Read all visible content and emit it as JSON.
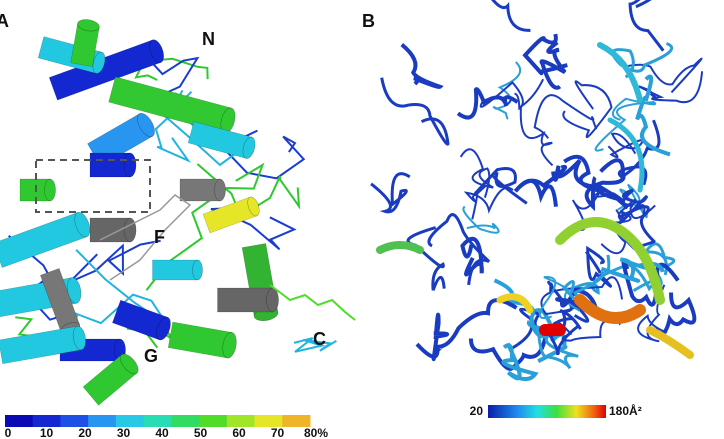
{
  "panel_a": {
    "label": "A",
    "annotations": [
      "N",
      "F",
      "C",
      "G"
    ],
    "scale": {
      "labels": [
        "0",
        "10",
        "20",
        "30",
        "40",
        "50",
        "60",
        "70",
        "80%"
      ]
    }
  },
  "panel_b": {
    "label": "B",
    "scale": {
      "min_label": "20",
      "max_label": "180Å²"
    }
  }
}
